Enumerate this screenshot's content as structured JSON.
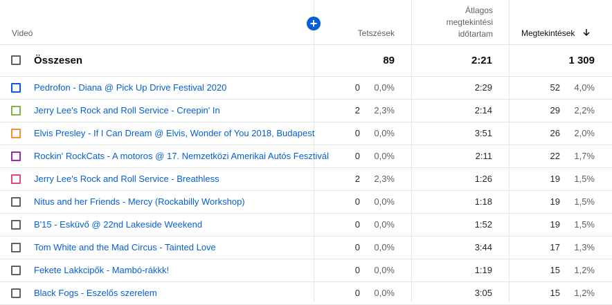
{
  "header": {
    "video_label": "Videó",
    "likes_label": "Tetszések",
    "avg_line1": "Átlagos",
    "avg_line2": "megtekintési",
    "avg_line3": "időtartam",
    "views_label": "Megtekintések",
    "sort_icon": "arrow-down-icon",
    "add_icon": "plus-circle-icon"
  },
  "total": {
    "label": "Összesen",
    "likes": "89",
    "avg": "2:21",
    "views": "1 309"
  },
  "rows": [
    {
      "title": "Pedrofon - Diana @ Pick Up Drive Festival 2020",
      "likes": "0",
      "likes_pct": "0,0%",
      "avg": "2:29",
      "views": "52",
      "views_pct": "4,0%",
      "color": "#065fd4"
    },
    {
      "title": "Jerry Lee's Rock and Roll Service - Creepin' In",
      "likes": "2",
      "likes_pct": "2,3%",
      "avg": "2:14",
      "views": "29",
      "views_pct": "2,2%",
      "color": "#7cb342"
    },
    {
      "title": "Elvis Presley - If I Can Dream @ Elvis, Wonder of You 2018, Budapest",
      "likes": "0",
      "likes_pct": "0,0%",
      "avg": "3:51",
      "views": "26",
      "views_pct": "2,0%",
      "color": "#f29130"
    },
    {
      "title": "Rockin' RockCats - A motoros @ 17. Nemzetközi Amerikai Autós Fesztivál",
      "likes": "0",
      "likes_pct": "0,0%",
      "avg": "2:11",
      "views": "22",
      "views_pct": "1,7%",
      "color": "#9c27b0"
    },
    {
      "title": "Jerry Lee's Rock and Roll Service - Breathless",
      "likes": "2",
      "likes_pct": "2,3%",
      "avg": "1:26",
      "views": "19",
      "views_pct": "1,5%",
      "color": "#e0477a"
    },
    {
      "title": "Nitus and her Friends - Mercy (Rockabilly Workshop)",
      "likes": "0",
      "likes_pct": "0,0%",
      "avg": "1:18",
      "views": "19",
      "views_pct": "1,5%",
      "color": "#606060"
    },
    {
      "title": "B'15 - Esküvő @ 22nd Lakeside Weekend",
      "likes": "0",
      "likes_pct": "0,0%",
      "avg": "1:52",
      "views": "19",
      "views_pct": "1,5%",
      "color": "#606060"
    },
    {
      "title": "Tom White and the Mad Circus - Tainted Love",
      "likes": "0",
      "likes_pct": "0,0%",
      "avg": "3:44",
      "views": "17",
      "views_pct": "1,3%",
      "color": "#606060"
    },
    {
      "title": "Fekete Lakkcipők - Mambó-rákkk!",
      "likes": "0",
      "likes_pct": "0,0%",
      "avg": "1:19",
      "views": "15",
      "views_pct": "1,2%",
      "color": "#606060"
    },
    {
      "title": "Black Fogs - Eszelős szerelem",
      "likes": "0",
      "likes_pct": "0,0%",
      "avg": "3:05",
      "views": "15",
      "views_pct": "1,2%",
      "color": "#606060"
    }
  ]
}
